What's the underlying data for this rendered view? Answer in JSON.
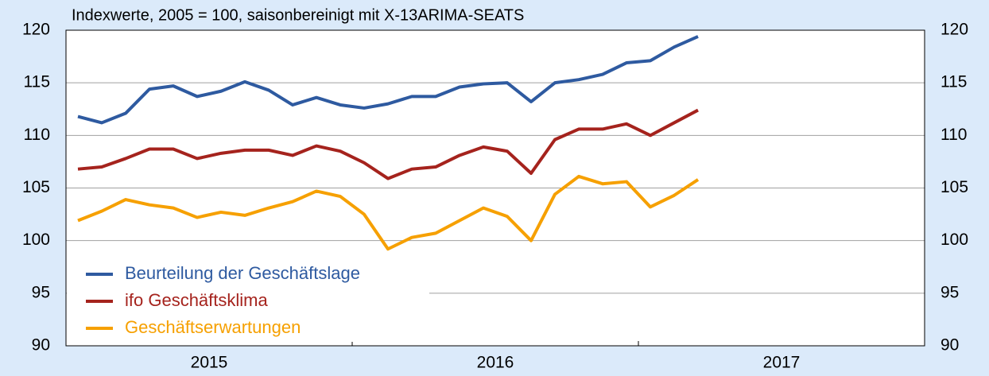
{
  "chart_data": {
    "type": "line",
    "title": "Indexwerte, 2005 = 100, saisonbereinigt mit X-13ARIMA-SEATS",
    "x": [
      "2015-01",
      "2015-02",
      "2015-03",
      "2015-04",
      "2015-05",
      "2015-06",
      "2015-07",
      "2015-08",
      "2015-09",
      "2015-10",
      "2015-11",
      "2015-12",
      "2016-01",
      "2016-02",
      "2016-03",
      "2016-04",
      "2016-05",
      "2016-06",
      "2016-07",
      "2016-08",
      "2016-09",
      "2016-10",
      "2016-11",
      "2016-12",
      "2017-01",
      "2017-02",
      "2017-03"
    ],
    "series": [
      {
        "name": "Beurteilung der Geschäftslage",
        "color": "#2e5aa0",
        "values": [
          111.8,
          111.2,
          112.1,
          114.4,
          114.7,
          113.7,
          114.2,
          115.1,
          114.3,
          112.9,
          113.6,
          112.9,
          112.6,
          113.0,
          113.7,
          113.7,
          114.6,
          114.9,
          115.0,
          113.2,
          115.0,
          115.3,
          115.8,
          116.9,
          117.1,
          118.4,
          119.4
        ]
      },
      {
        "name": "ifo Geschäftsklima",
        "color": "#a5231d",
        "values": [
          106.8,
          107.0,
          107.8,
          108.7,
          108.7,
          107.8,
          108.3,
          108.6,
          108.6,
          108.1,
          109.0,
          108.5,
          107.4,
          105.9,
          106.8,
          107.0,
          108.1,
          108.9,
          108.5,
          106.4,
          109.6,
          110.6,
          110.6,
          111.1,
          110.0,
          111.2,
          112.4
        ]
      },
      {
        "name": "Geschäftserwartungen",
        "color": "#f6a000",
        "values": [
          101.9,
          102.8,
          103.9,
          103.4,
          103.1,
          102.2,
          102.7,
          102.4,
          103.1,
          103.7,
          104.7,
          104.2,
          102.5,
          99.2,
          100.3,
          100.7,
          101.9,
          103.1,
          102.3,
          100.0,
          104.4,
          106.1,
          105.4,
          105.6,
          103.2,
          104.3,
          105.8
        ]
      }
    ],
    "xlim": [
      2015,
      2018
    ],
    "xticks": [
      2015,
      2016,
      2017,
      2018
    ],
    "year_labels": [
      "2015",
      "2016",
      "2017"
    ],
    "ylim": [
      90,
      120
    ],
    "yticks": [
      90,
      95,
      100,
      105,
      110,
      115,
      120
    ],
    "grid": true,
    "legend": "lower left"
  }
}
